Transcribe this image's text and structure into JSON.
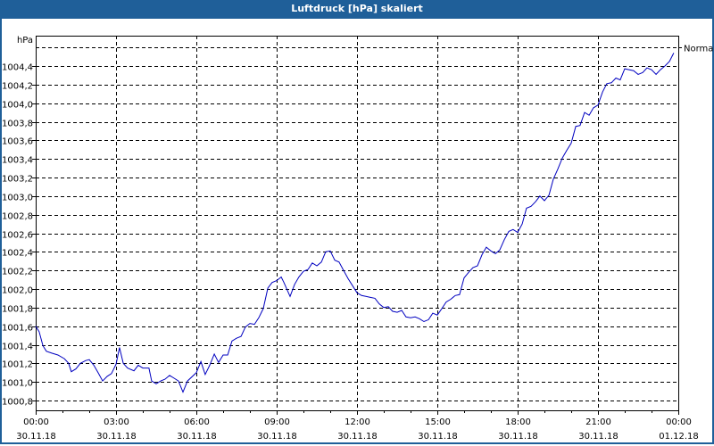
{
  "window": {
    "title": "Luftdruck [hPa] skaliert",
    "accent": "#1f5f99"
  },
  "chart_data": {
    "type": "line",
    "title": "Luftdruck [hPa] skaliert",
    "ylabel": "hPa",
    "xlabel": "",
    "ylim": [
      1000.7,
      1004.8
    ],
    "grid": true,
    "y_ticks": [
      "1004,4",
      "1004,2",
      "1004,0",
      "1003,8",
      "1003,6",
      "1003,4",
      "1003,2",
      "1003,0",
      "1002,8",
      "1002,6",
      "1002,4",
      "1002,2",
      "1002,0",
      "1001,8",
      "1001,6",
      "1001,4",
      "1001,2",
      "1001,0",
      "1000,8"
    ],
    "x_ticks": [
      {
        "time": "00:00",
        "date": "30.11.18"
      },
      {
        "time": "03:00",
        "date": "30.11.18"
      },
      {
        "time": "06:00",
        "date": "30.11.18"
      },
      {
        "time": "09:00",
        "date": "30.11.18"
      },
      {
        "time": "12:00",
        "date": "30.11.18"
      },
      {
        "time": "15:00",
        "date": "30.11.18"
      },
      {
        "time": "18:00",
        "date": "30.11.18"
      },
      {
        "time": "21:00",
        "date": "30.11.18"
      },
      {
        "time": "00:00",
        "date": "01.12.18"
      }
    ],
    "reference_line": {
      "label": "Normal",
      "value": 1004.6
    },
    "series": [
      {
        "name": "Luftdruck",
        "color": "#0000c0",
        "points_hours_hpa": [
          [
            0.0,
            1001.6
          ],
          [
            0.13,
            1001.54
          ],
          [
            0.27,
            1001.39
          ],
          [
            0.4,
            1001.33
          ],
          [
            0.6,
            1001.31
          ],
          [
            0.83,
            1001.29
          ],
          [
            1.07,
            1001.25
          ],
          [
            1.23,
            1001.2
          ],
          [
            1.33,
            1001.11
          ],
          [
            1.5,
            1001.14
          ],
          [
            1.67,
            1001.2
          ],
          [
            1.87,
            1001.23
          ],
          [
            2.0,
            1001.24
          ],
          [
            2.17,
            1001.18
          ],
          [
            2.33,
            1001.1
          ],
          [
            2.5,
            1001.01
          ],
          [
            2.67,
            1001.06
          ],
          [
            2.83,
            1001.09
          ],
          [
            3.0,
            1001.19
          ],
          [
            3.13,
            1001.37
          ],
          [
            3.27,
            1001.2
          ],
          [
            3.43,
            1001.15
          ],
          [
            3.67,
            1001.12
          ],
          [
            3.83,
            1001.18
          ],
          [
            4.0,
            1001.15
          ],
          [
            4.23,
            1001.15
          ],
          [
            4.33,
            1001.01
          ],
          [
            4.5,
            1000.98
          ],
          [
            4.67,
            1001.01
          ],
          [
            4.83,
            1001.03
          ],
          [
            5.0,
            1001.07
          ],
          [
            5.17,
            1001.04
          ],
          [
            5.33,
            1001.01
          ],
          [
            5.5,
            1000.89
          ],
          [
            5.67,
            1001.01
          ],
          [
            6.0,
            1001.1
          ],
          [
            6.17,
            1001.22
          ],
          [
            6.33,
            1001.08
          ],
          [
            6.5,
            1001.18
          ],
          [
            6.67,
            1001.3
          ],
          [
            6.83,
            1001.21
          ],
          [
            7.0,
            1001.29
          ],
          [
            7.17,
            1001.29
          ],
          [
            7.33,
            1001.44
          ],
          [
            7.5,
            1001.47
          ],
          [
            7.67,
            1001.49
          ],
          [
            7.83,
            1001.59
          ],
          [
            8.0,
            1001.63
          ],
          [
            8.17,
            1001.62
          ],
          [
            8.33,
            1001.69
          ],
          [
            8.5,
            1001.79
          ],
          [
            8.67,
            1002.01
          ],
          [
            8.83,
            1002.07
          ],
          [
            9.0,
            1002.09
          ],
          [
            9.17,
            1002.13
          ],
          [
            9.27,
            1002.07
          ],
          [
            9.5,
            1001.92
          ],
          [
            9.67,
            1002.05
          ],
          [
            9.83,
            1002.13
          ],
          [
            10.0,
            1002.19
          ],
          [
            10.17,
            1002.21
          ],
          [
            10.33,
            1002.28
          ],
          [
            10.5,
            1002.25
          ],
          [
            10.67,
            1002.29
          ],
          [
            10.83,
            1002.4
          ],
          [
            11.0,
            1002.41
          ],
          [
            11.17,
            1002.31
          ],
          [
            11.33,
            1002.29
          ],
          [
            11.5,
            1002.2
          ],
          [
            11.67,
            1002.11
          ],
          [
            12.0,
            1001.96
          ],
          [
            12.17,
            1001.93
          ],
          [
            12.33,
            1001.92
          ],
          [
            12.5,
            1001.91
          ],
          [
            12.67,
            1001.9
          ],
          [
            12.83,
            1001.84
          ],
          [
            13.0,
            1001.8
          ],
          [
            13.17,
            1001.81
          ],
          [
            13.33,
            1001.76
          ],
          [
            13.5,
            1001.75
          ],
          [
            13.67,
            1001.77
          ],
          [
            13.83,
            1001.7
          ],
          [
            14.0,
            1001.69
          ],
          [
            14.17,
            1001.7
          ],
          [
            14.33,
            1001.68
          ],
          [
            14.5,
            1001.65
          ],
          [
            14.67,
            1001.67
          ],
          [
            14.83,
            1001.74
          ],
          [
            15.0,
            1001.72
          ],
          [
            15.17,
            1001.79
          ],
          [
            15.33,
            1001.86
          ],
          [
            15.5,
            1001.89
          ],
          [
            15.67,
            1001.93
          ],
          [
            15.83,
            1001.94
          ],
          [
            16.0,
            1002.12
          ],
          [
            16.17,
            1002.18
          ],
          [
            16.33,
            1002.23
          ],
          [
            16.5,
            1002.25
          ],
          [
            16.67,
            1002.37
          ],
          [
            16.83,
            1002.45
          ],
          [
            17.0,
            1002.41
          ],
          [
            17.17,
            1002.38
          ],
          [
            17.33,
            1002.42
          ],
          [
            17.5,
            1002.53
          ],
          [
            17.67,
            1002.62
          ],
          [
            17.83,
            1002.64
          ],
          [
            18.0,
            1002.61
          ],
          [
            18.17,
            1002.7
          ],
          [
            18.33,
            1002.87
          ],
          [
            18.5,
            1002.89
          ],
          [
            18.67,
            1002.94
          ],
          [
            18.83,
            1003.0
          ],
          [
            19.0,
            1002.95
          ],
          [
            19.17,
            1003.01
          ],
          [
            19.33,
            1003.18
          ],
          [
            19.5,
            1003.29
          ],
          [
            19.67,
            1003.41
          ],
          [
            19.83,
            1003.49
          ],
          [
            20.0,
            1003.57
          ],
          [
            20.17,
            1003.75
          ],
          [
            20.33,
            1003.76
          ],
          [
            20.5,
            1003.9
          ],
          [
            20.67,
            1003.87
          ],
          [
            20.83,
            1003.95
          ],
          [
            21.0,
            1003.98
          ],
          [
            21.17,
            1004.12
          ],
          [
            21.33,
            1004.21
          ],
          [
            21.5,
            1004.22
          ],
          [
            21.67,
            1004.27
          ],
          [
            21.83,
            1004.25
          ],
          [
            22.0,
            1004.37
          ],
          [
            22.17,
            1004.36
          ],
          [
            22.33,
            1004.35
          ],
          [
            22.5,
            1004.31
          ],
          [
            22.67,
            1004.33
          ],
          [
            22.83,
            1004.38
          ],
          [
            23.0,
            1004.36
          ],
          [
            23.17,
            1004.31
          ],
          [
            23.33,
            1004.36
          ],
          [
            23.5,
            1004.4
          ],
          [
            23.67,
            1004.45
          ],
          [
            23.83,
            1004.54
          ]
        ]
      }
    ]
  }
}
